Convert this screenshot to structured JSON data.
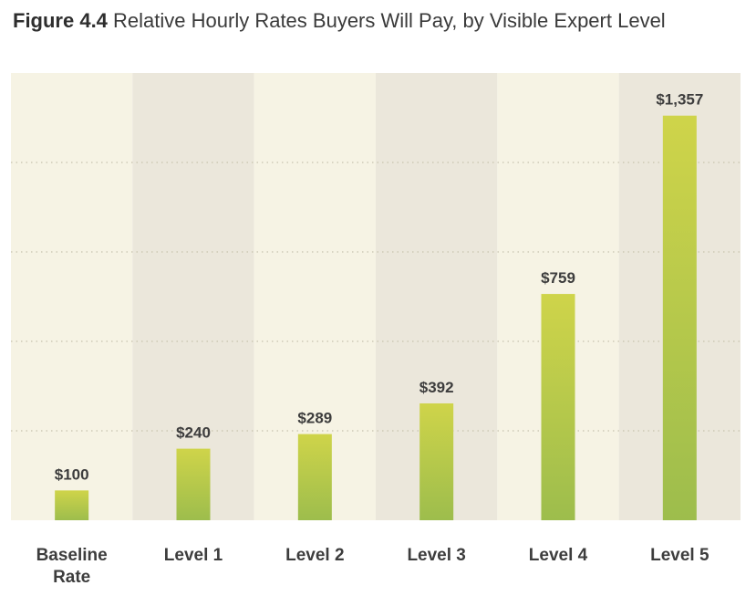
{
  "title": {
    "figure_label": "Figure 4.4",
    "text": "Relative Hourly Rates Buyers Will Pay, by Visible Expert Level"
  },
  "colors": {
    "band_light": "#f6f3e4",
    "band_dark": "#ebe7db",
    "bar_top": "#cfd44a",
    "bar_bottom": "#9dbd4c",
    "grid": "#c7c2ad",
    "text": "#3d3d3d"
  },
  "chart_data": {
    "type": "bar",
    "title": "Relative Hourly Rates Buyers Will Pay, by Visible Expert Level",
    "categories": [
      [
        "Baseline",
        "Rate"
      ],
      [
        "Level 1"
      ],
      [
        "Level 2"
      ],
      [
        "Level 3"
      ],
      [
        "Level 4"
      ],
      [
        "Level 5"
      ]
    ],
    "values": [
      100,
      240,
      289,
      392,
      759,
      1357
    ],
    "value_labels": [
      "$100",
      "$240",
      "$289",
      "$392",
      "$759",
      "$1,357"
    ],
    "ylim": [
      0,
      1500
    ],
    "grid": true,
    "grid_style": "dotted",
    "ytick_values": [
      300,
      600,
      900,
      1200
    ]
  }
}
